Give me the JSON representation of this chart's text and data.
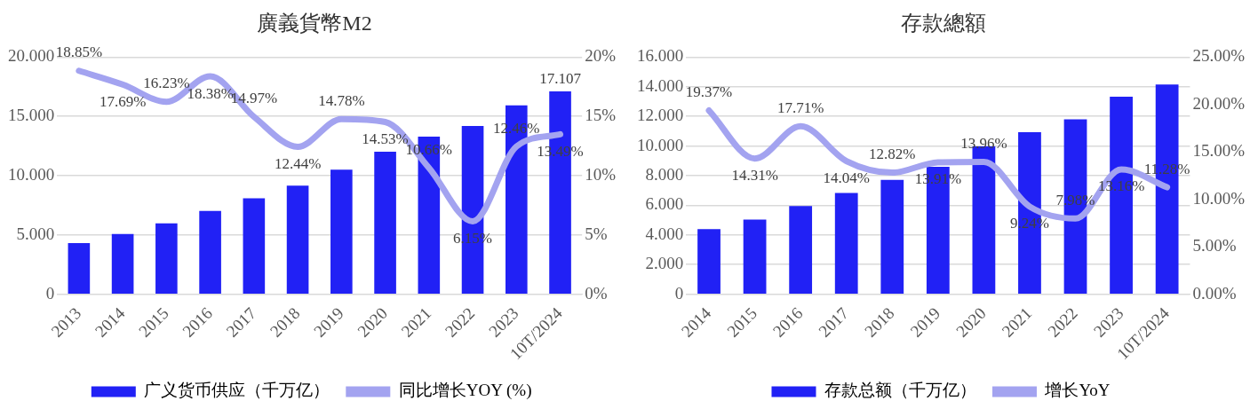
{
  "chart_data": [
    {
      "type": "bar",
      "title": "廣義貨幣M2",
      "categories": [
        "2013",
        "2014",
        "2015",
        "2016",
        "2017",
        "2018",
        "2019",
        "2020",
        "2021",
        "2022",
        "2023",
        "10T/2024"
      ],
      "series": [
        {
          "name": "广义货币供应（千万亿）",
          "color": "#2121f5",
          "values": [
            4.32,
            5.08,
            5.97,
            7.03,
            8.09,
            9.15,
            10.51,
            12.03,
            13.3,
            14.19,
            15.93,
            17.107
          ],
          "value_labels": [
            null,
            null,
            null,
            null,
            null,
            null,
            null,
            null,
            null,
            null,
            null,
            "17.107"
          ]
        },
        {
          "name": "同比增长YOY (%)",
          "type": "line",
          "axis": "y2",
          "color": "#a3a3f0",
          "values": [
            18.85,
            17.69,
            16.23,
            18.38,
            14.97,
            12.44,
            14.78,
            14.53,
            10.66,
            6.15,
            12.46,
            13.49
          ],
          "value_labels": [
            "18.85%",
            "17.69%",
            "16.23%",
            "18.38%",
            "14.97%",
            "12.44%",
            "14.78%",
            "14.53%",
            "10.66%",
            "6.15%",
            "12.46%",
            "13.49%"
          ]
        }
      ],
      "ylim": [
        0,
        20
      ],
      "yticks": [
        {
          "value": 0,
          "label": "0"
        },
        {
          "value": 5,
          "label": "5.000"
        },
        {
          "value": 10,
          "label": "10.000"
        },
        {
          "value": 15,
          "label": "15.000"
        },
        {
          "value": 20,
          "label": "20.000"
        }
      ],
      "y2lim": [
        0,
        20
      ],
      "y2ticks": [
        {
          "value": 0,
          "label": "0%"
        },
        {
          "value": 5,
          "label": "5%"
        },
        {
          "value": 10,
          "label": "10%"
        },
        {
          "value": 15,
          "label": "15%"
        },
        {
          "value": 20,
          "label": "20%"
        }
      ],
      "grid": "y",
      "legend": "bottom",
      "marker": "none"
    },
    {
      "type": "bar",
      "title": "存款總額",
      "categories": [
        "2014",
        "2015",
        "2016",
        "2017",
        "2018",
        "2019",
        "2020",
        "2021",
        "2022",
        "2023",
        "10T/2024"
      ],
      "series": [
        {
          "name": "存款总额（千万亿）",
          "color": "#2121f5",
          "values": [
            4.39,
            5.04,
            5.95,
            6.83,
            7.71,
            8.6,
            9.98,
            10.93,
            11.8,
            13.33,
            14.15
          ]
        },
        {
          "name": "增长YoY",
          "type": "line",
          "axis": "y2",
          "color": "#a3a3f0",
          "values": [
            19.37,
            14.31,
            17.71,
            14.04,
            12.82,
            13.91,
            13.96,
            9.24,
            7.98,
            13.16,
            11.28
          ],
          "value_labels": [
            "19.37%",
            "14.31%",
            "17.71%",
            "14.04%",
            "12.82%",
            "13.91%",
            "13.96%",
            "9.24%",
            "7.98%",
            "13.16%",
            "11.28%"
          ]
        }
      ],
      "ylim": [
        0,
        16
      ],
      "yticks": [
        {
          "value": 0,
          "label": "0"
        },
        {
          "value": 2,
          "label": "2.000"
        },
        {
          "value": 4,
          "label": "4.000"
        },
        {
          "value": 6,
          "label": "6.000"
        },
        {
          "value": 8,
          "label": "8.000"
        },
        {
          "value": 10,
          "label": "10.000"
        },
        {
          "value": 12,
          "label": "12.000"
        },
        {
          "value": 14,
          "label": "14.000"
        },
        {
          "value": 16,
          "label": "16.000"
        }
      ],
      "y2lim": [
        0,
        25
      ],
      "y2ticks": [
        {
          "value": 0,
          "label": "0.00%"
        },
        {
          "value": 5,
          "label": "5.00%"
        },
        {
          "value": 10,
          "label": "10.00%"
        },
        {
          "value": 15,
          "label": "15.00%"
        },
        {
          "value": 20,
          "label": "20.00%"
        },
        {
          "value": 25,
          "label": "25.00%"
        }
      ],
      "grid": "y",
      "legend": "bottom",
      "marker": "none"
    }
  ]
}
